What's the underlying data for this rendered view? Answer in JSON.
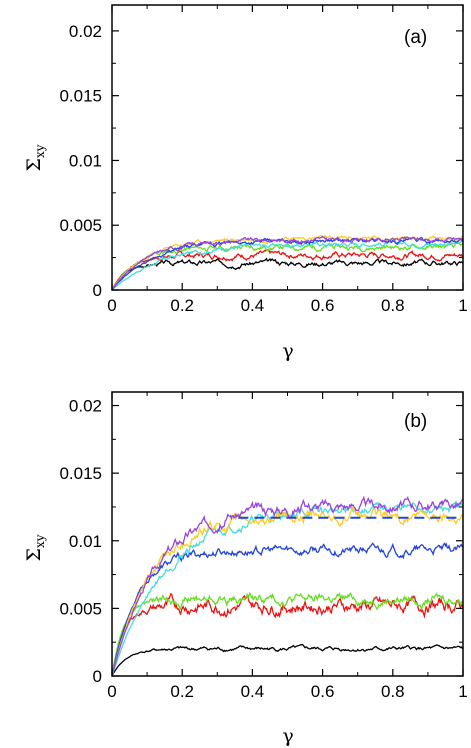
{
  "chart_data": [
    {
      "type": "line",
      "panel_label": "(a)",
      "xlabel": "γ",
      "ylabel": "Σ",
      "ylabel_sub": "xy",
      "xlim": [
        0,
        1
      ],
      "ylim": [
        0,
        0.022
      ],
      "x_ticks": [
        0,
        0.2,
        0.4,
        0.6,
        0.8,
        1
      ],
      "x_tick_labels": [
        "0",
        "0.2",
        "0.4",
        "0.6",
        "0.8",
        "1"
      ],
      "y_ticks": [
        0,
        0.005,
        0.01,
        0.015,
        0.02
      ],
      "y_tick_labels": [
        "0",
        "0.005",
        "0.01",
        "0.015",
        "0.02"
      ],
      "grid": false,
      "legend": "none",
      "series": [
        {
          "color": "#000000",
          "plateau": 0.0021,
          "rate": 25,
          "noise": 0.00012,
          "seed": 3
        },
        {
          "color": "#ee1111",
          "plateau": 0.0027,
          "rate": 20,
          "noise": 0.00014,
          "seed": 7
        },
        {
          "color": "#66dd22",
          "plateau": 0.0033,
          "rate": 14,
          "noise": 0.00013,
          "seed": 11
        },
        {
          "color": "#44dddd",
          "plateau": 0.0036,
          "rate": 7,
          "noise": 0.0001,
          "seed": 17
        },
        {
          "color": "#ffcc22",
          "plateau": 0.004,
          "rate": 10,
          "noise": 9e-05,
          "seed": 23
        },
        {
          "color": "#2244dd",
          "plateau": 0.0038,
          "rate": 9,
          "noise": 0.0001,
          "seed": 29
        },
        {
          "color": "#9944dd",
          "plateau": 0.0039,
          "rate": 10,
          "noise": 0.0001,
          "seed": 31
        }
      ],
      "reference_lines": []
    },
    {
      "type": "line",
      "panel_label": "(b)",
      "xlabel": "γ",
      "ylabel": "Σ",
      "ylabel_sub": "xy",
      "xlim": [
        0,
        1
      ],
      "ylim": [
        0,
        0.021
      ],
      "x_ticks": [
        0,
        0.2,
        0.4,
        0.6,
        0.8,
        1
      ],
      "x_tick_labels": [
        "0",
        "0.2",
        "0.4",
        "0.6",
        "0.8",
        "1"
      ],
      "y_ticks": [
        0,
        0.005,
        0.01,
        0.015,
        0.02
      ],
      "y_tick_labels": [
        "0",
        "0.005",
        "0.01",
        "0.015",
        "0.02"
      ],
      "grid": false,
      "legend": "none",
      "series": [
        {
          "color": "#000000",
          "plateau": 0.002,
          "rate": 25,
          "noise": 9e-05,
          "seed": 41
        },
        {
          "color": "#ee1111",
          "plateau": 0.0052,
          "rate": 30,
          "noise": 0.0003,
          "seed": 43
        },
        {
          "color": "#66dd22",
          "plateau": 0.0057,
          "rate": 30,
          "noise": 0.00022,
          "seed": 47
        },
        {
          "color": "#2244dd",
          "plateau": 0.0093,
          "rate": 14,
          "noise": 0.0002,
          "seed": 53
        },
        {
          "color": "#44dddd",
          "plateau": 0.0124,
          "rate": 6.5,
          "noise": 0.0002,
          "seed": 59
        },
        {
          "color": "#ffcc22",
          "plateau": 0.0118,
          "rate": 9,
          "noise": 0.00025,
          "seed": 61
        },
        {
          "color": "#9944dd",
          "plateau": 0.0127,
          "rate": 8,
          "noise": 0.00025,
          "seed": 67
        }
      ],
      "reference_lines": [
        {
          "color": "#2244dd",
          "y": 0.0117,
          "x_start": 0.36,
          "x_end": 1.0,
          "style": "dashed"
        }
      ]
    }
  ]
}
